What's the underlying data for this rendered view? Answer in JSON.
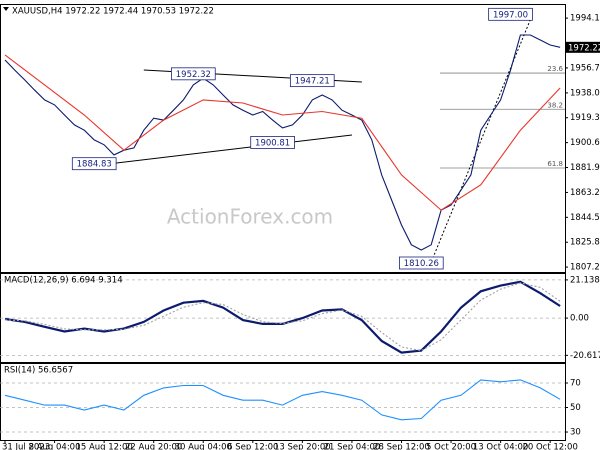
{
  "chart_data": [
    {
      "type": "line",
      "title": "XAUUSD,H4 1972.22 1972.44 1970.53 1972.22",
      "watermark": "ActionForex.com",
      "xlim": [
        0,
        57
      ],
      "ylim": [
        1803.5,
        2004
      ],
      "yticks": [
        1994.15,
        1956.75,
        {
          "value": 1938.0,
          "label": "1938.00"
        },
        1919.35,
        1900.65,
        1881.95,
        1863.25,
        1844.55,
        1825.85,
        {
          "value": 1807.2,
          "label": "1807.20"
        }
      ],
      "grid": false,
      "last_price": 1972.22,
      "series": [
        {
          "color": "#0d1b6e",
          "x": [
            0,
            1,
            2,
            3,
            4,
            5,
            6,
            7,
            8,
            9,
            10,
            11,
            12,
            13,
            14,
            15,
            16,
            17,
            18,
            19,
            20,
            21,
            22,
            23,
            24,
            25,
            26,
            27,
            28,
            29,
            30,
            31,
            32,
            33,
            34,
            35,
            36,
            37,
            38,
            39,
            40,
            41,
            42,
            43,
            44,
            45,
            46,
            47,
            48,
            49,
            50,
            51,
            52,
            53,
            54,
            55,
            56
          ],
          "values": [
            1962.7,
            1955,
            1947.7,
            1940,
            1932.7,
            1929,
            1921.4,
            1914,
            1910,
            1902.7,
            1899,
            1891.4,
            1895,
            1896.7,
            1910,
            1919,
            1917.6,
            1925,
            1932.7,
            1944,
            1949,
            1944,
            1936.4,
            1929,
            1925,
            1921.4,
            1924,
            1917.6,
            1911.7,
            1914,
            1921.4,
            1932.7,
            1936.4,
            1932.7,
            1925,
            1921.4,
            1917.6,
            1902.7,
            1876.4,
            1857.6,
            1838.8,
            1823.9,
            1820,
            1823.9,
            1850,
            1853.9,
            1865,
            1876.4,
            1910,
            1921.4,
            1932.7,
            1955,
            1981.5,
            1981.5,
            1977.7,
            1974,
            1972.22
          ]
        },
        {
          "color": "#e8352b",
          "x": [
            0,
            4,
            8,
            12,
            16,
            20,
            24,
            28,
            32,
            36,
            40,
            44,
            48,
            52,
            56
          ],
          "values": [
            1966.5,
            1944,
            1921.4,
            1895,
            1917.6,
            1932.7,
            1930.4,
            1921.4,
            1924,
            1919,
            1876.4,
            1850,
            1869,
            1910,
            1941.7
          ]
        }
      ],
      "annotations": [
        {
          "text": "1884.83",
          "x": 9,
          "y": 1884.83
        },
        {
          "text": "1952.32",
          "x": 19,
          "y": 1952.32
        },
        {
          "text": "1947.21",
          "x": 31,
          "y": 1947.21
        },
        {
          "text": "1900.81",
          "x": 27,
          "y": 1900.81
        },
        {
          "text": "1810.26",
          "x": 42,
          "y": 1810.26
        },
        {
          "text": "1997.00",
          "x": 51,
          "y": 1997.0
        }
      ],
      "fib_levels": [
        {
          "label": "23.6",
          "value": 1952.9
        },
        {
          "label": "38.2",
          "value": 1925.7
        },
        {
          "label": "61.8",
          "value": 1881.6
        }
      ],
      "trendlines": [
        {
          "x": [
            7,
            35
          ],
          "y": [
            1881.6,
            1906.4
          ],
          "style": "solid"
        },
        {
          "x": [
            14,
            36
          ],
          "y": [
            1955.2,
            1946.2
          ],
          "style": "solid"
        },
        {
          "x": [
            43,
            53
          ],
          "y": [
            1811,
            1993
          ],
          "style": "dotted"
        }
      ]
    },
    {
      "type": "line",
      "title": "MACD(12,26,9) 6.694 9.314",
      "xlim": [
        0,
        57
      ],
      "ylim": [
        -24.3,
        24.4
      ],
      "yticks": [
        21.138,
        {
          "value": 0,
          "label": "0.00"
        },
        -20.617
      ],
      "grid": true,
      "series": [
        {
          "color": "#0d1b6e",
          "width": 2.2,
          "x": [
            0,
            2,
            4,
            6,
            8,
            10,
            12,
            14,
            16,
            18,
            20,
            22,
            24,
            26,
            28,
            30,
            32,
            34,
            36,
            38,
            40,
            42,
            44,
            46,
            48,
            50,
            52,
            54,
            56
          ],
          "values": [
            -0.5,
            -2.1,
            -4.8,
            -7.4,
            -5.8,
            -7.4,
            -5.8,
            -2.1,
            4.2,
            8.5,
            9.5,
            5.8,
            -1.1,
            -3.2,
            -3.2,
            0,
            4.2,
            4.8,
            -1.1,
            -12.7,
            -19.1,
            -18,
            -7.4,
            5.8,
            14.8,
            18,
            20.1,
            13.8,
            6.694
          ]
        },
        {
          "color": "#a0a0a0",
          "style": "dotted",
          "x": [
            0,
            2,
            4,
            6,
            8,
            10,
            12,
            14,
            16,
            18,
            20,
            22,
            24,
            26,
            28,
            30,
            32,
            34,
            36,
            38,
            40,
            42,
            44,
            46,
            48,
            50,
            52,
            54,
            56
          ],
          "values": [
            -1,
            -1.5,
            -3.5,
            -6,
            -6.5,
            -6.5,
            -6.2,
            -4,
            1,
            6,
            8.5,
            7.5,
            2,
            -2,
            -3,
            -1.5,
            2.5,
            4.5,
            1,
            -8,
            -16,
            -18,
            -12,
            -1,
            10,
            16,
            19.5,
            17,
            9.314
          ]
        }
      ]
    },
    {
      "type": "line",
      "title": "RSI(14) 56.6567",
      "xlim": [
        0,
        57
      ],
      "ylim": [
        23.5,
        85.5
      ],
      "yticks": [
        70,
        50,
        30
      ],
      "grid": true,
      "series": [
        {
          "color": "#1e90ff",
          "x": [
            0,
            2,
            4,
            6,
            8,
            10,
            12,
            14,
            16,
            18,
            20,
            22,
            24,
            26,
            28,
            30,
            32,
            34,
            36,
            38,
            40,
            42,
            44,
            46,
            48,
            50,
            52,
            54,
            56
          ],
          "values": [
            60,
            56,
            52,
            52,
            48,
            52,
            48,
            60,
            66,
            68,
            68,
            60,
            56,
            56,
            52,
            60,
            63,
            60,
            56,
            44,
            40,
            41,
            56,
            60,
            72.5,
            71,
            72.5,
            66,
            56.7
          ]
        }
      ],
      "xticks": [
        {
          "value": 0,
          "label": "31 Jul 2023"
        },
        {
          "value": 5,
          "label": "8 Aug 04:00"
        },
        {
          "value": 10,
          "label": "15 Aug 12:00"
        },
        {
          "value": 15,
          "label": "22 Aug 20:00"
        },
        {
          "value": 20,
          "label": "30 Aug 04:00"
        },
        {
          "value": 25,
          "label": "6 Sep 12:00"
        },
        {
          "value": 30,
          "label": "13 Sep 20:00"
        },
        {
          "value": 35,
          "label": "21 Sep 04:00"
        },
        {
          "value": 40,
          "label": "28 Sep 12:00"
        },
        {
          "value": 45,
          "label": "5 Oct 20:00"
        },
        {
          "value": 50,
          "label": "13 Oct 04:00"
        },
        {
          "value": 55,
          "label": "20 Oct 12:00"
        }
      ]
    }
  ]
}
